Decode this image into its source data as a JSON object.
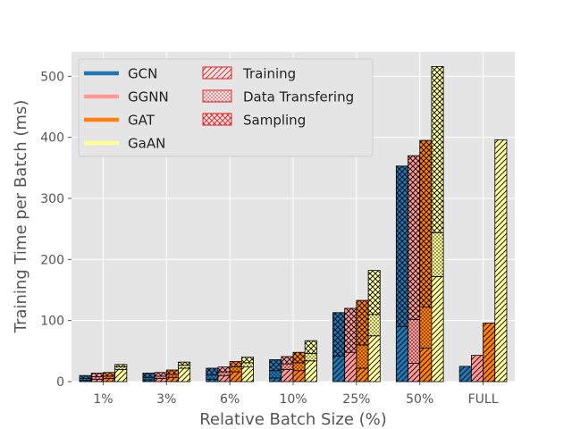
{
  "chart_data": {
    "type": "bar",
    "stacked": true,
    "xlabel": "Relative Batch Size (%)",
    "ylabel": "Training Time per Batch (ms)",
    "ylim": [
      0,
      540
    ],
    "yticks": [
      0,
      100,
      200,
      300,
      400,
      500
    ],
    "grid": true,
    "legend_placement": "top-left",
    "categories": [
      "1%",
      "3%",
      "6%",
      "10%",
      "25%",
      "50%",
      "FULL"
    ],
    "stack_components": [
      {
        "name": "Training",
        "hatch": "diagonal"
      },
      {
        "name": "Data Transfering",
        "hatch": "dots"
      },
      {
        "name": "Sampling",
        "hatch": "crosshatch"
      }
    ],
    "series": [
      {
        "name": "GCN",
        "color": "#1f77b4",
        "training": [
          2,
          3,
          4,
          6,
          42,
          90,
          25
        ],
        "transfering": [
          3,
          4,
          7,
          12,
          0,
          0,
          0
        ],
        "sampling": [
          5,
          7,
          11,
          18,
          71,
          263,
          0
        ]
      },
      {
        "name": "GGNN",
        "color": "#ff9896",
        "training": [
          4,
          5,
          10,
          20,
          48,
          30,
          43
        ],
        "transfering": [
          4,
          4,
          6,
          9,
          0,
          72,
          0
        ],
        "sampling": [
          6,
          6,
          8,
          12,
          72,
          268,
          0
        ]
      },
      {
        "name": "GAT",
        "color": "#ff7f0e",
        "training": [
          5,
          7,
          16,
          18,
          22,
          55,
          96
        ],
        "transfering": [
          4,
          5,
          8,
          13,
          38,
          67,
          0
        ],
        "sampling": [
          6,
          7,
          9,
          17,
          73,
          273,
          0
        ]
      },
      {
        "name": "GaAN",
        "color": "#ffff99",
        "training": [
          20,
          22,
          24,
          34,
          75,
          172,
          396
        ],
        "transfering": [
          4,
          5,
          7,
          12,
          35,
          72,
          0
        ],
        "sampling": [
          4,
          5,
          9,
          21,
          72,
          272,
          0
        ]
      }
    ]
  }
}
